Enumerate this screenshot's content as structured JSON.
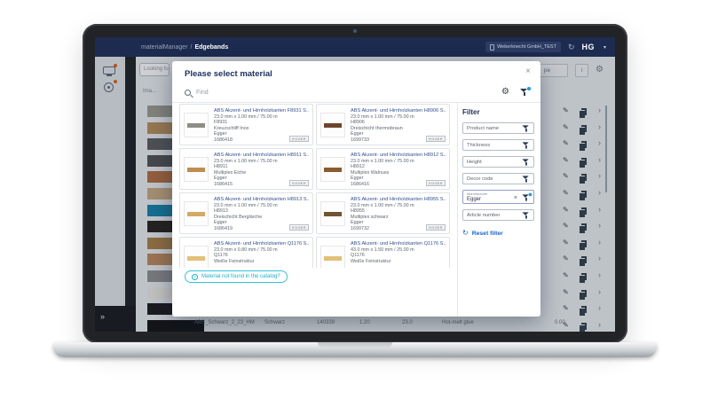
{
  "nav": {
    "app": "materialManager",
    "separator": "/",
    "section": "Edgebands",
    "org_badge": "Weberknecht GmbH_TEST",
    "logo": "HG",
    "logo_caret": "▾",
    "sync_glyph": "↻"
  },
  "background": {
    "search_value": "Looking fo",
    "image_column_header": "Ima...",
    "partial_button": "pe",
    "info_button": "i",
    "gear_glyph": "⚙",
    "expand_toggle": "»",
    "edit_glyph": "✎",
    "chevron_glyph": "›",
    "swatches": [
      {
        "color": "#99998b"
      },
      {
        "color": "#b68c55"
      },
      {
        "color": "#59595b"
      },
      {
        "color": "#4e4e50"
      },
      {
        "color": "#b06b3c"
      },
      {
        "color": "#c8a97e"
      },
      {
        "color": "#0f7fa6"
      },
      {
        "color": "#211c16"
      },
      {
        "color": "#a87c3f"
      },
      {
        "color": "#bd8756"
      },
      {
        "color": "#8d8d8d"
      },
      {
        "color": "#edeae4"
      },
      {
        "color": "#151515"
      },
      {
        "color": "#0b0b0b"
      }
    ],
    "last_row": {
      "name": "ABS_Schwarz_2_23_HM",
      "color": "Schwarz",
      "code": "140339",
      "thickness": "1.20",
      "height": "23.0",
      "glue": "Hot-melt glue",
      "price": "0.00"
    }
  },
  "modal": {
    "title": "Please select material",
    "close_glyph": "×",
    "search_placeholder": "Find",
    "gear_glyph": "⚙",
    "help_glyph": "?",
    "not_found_button": "Material not found in the catalog?",
    "materials": [
      {
        "title": "ABS Akzent- und Hirnholzkanten F8931 S..",
        "dimensions": "23.0 mm x 1.00 mm / 75.00 m",
        "code": "F8931",
        "decor": "Kreuzschliff Inox",
        "manufacturer": "Egger",
        "article": "1686418",
        "strip": "#8d8d85",
        "brand": "EGGER"
      },
      {
        "title": "ABS Akzent- und Hirnholzkanten H8906 S..",
        "dimensions": "23.0 mm x 1.00 mm / 75.00 m",
        "code": "H8906",
        "decor": "Dreischicht thermobraun",
        "manufacturer": "Egger",
        "article": "1699733",
        "strip": "#6e452a",
        "brand": "EGGER"
      },
      {
        "title": "ABS Akzent- und Hirnholzkanten H8911 S..",
        "dimensions": "23.0 mm x 1.00 mm / 75.00 m",
        "code": "H8911",
        "decor": "Multiplex Eiche",
        "manufacturer": "Egger",
        "article": "1686415",
        "strip": "#c08d4e",
        "brand": "EGGER"
      },
      {
        "title": "ABS Akzent- und Hirnholzkanten H8912 S..",
        "dimensions": "23.0 mm x 1.00 mm / 75.00 m",
        "code": "H8912",
        "decor": "Multiplex Walnuss",
        "manufacturer": "Egger",
        "article": "1686416",
        "strip": "#8a5a30",
        "brand": "EGGER"
      },
      {
        "title": "ABS Akzent- und Hirnholzkanten H8913 S..",
        "dimensions": "23.0 mm x 1.00 mm / 75.00 m",
        "code": "H8913",
        "decor": "Dreischicht Berglärche",
        "manufacturer": "Egger",
        "article": "1686419",
        "strip": "#d4a964",
        "brand": "EGGER"
      },
      {
        "title": "ABS Akzent- und Hirnholzkanten H8955 S..",
        "dimensions": "23.0 mm x 1.00 mm / 75.00 m",
        "code": "H8955",
        "decor": "Multiplex schwarz",
        "manufacturer": "Egger",
        "article": "1699732",
        "strip": "#6f5433",
        "brand": "EGGER"
      },
      {
        "title": "ABS Akzent- und Hirnholzkanten Q1176 S..",
        "dimensions": "23.0 mm x 0.80 mm / 75.00 m",
        "code": "Q1176",
        "decor": "Weiße Feinstruktur",
        "manufacturer": "",
        "article": "",
        "strip": "#e2c077",
        "brand": ""
      },
      {
        "title": "ABS Akzent- und Hirnholzkanten Q1176 S..",
        "dimensions": "43.0 mm x 1.50 mm / 25.00 m",
        "code": "Q1176",
        "decor": "Weiße Feinstruktur",
        "manufacturer": "",
        "article": "",
        "strip": "#e2c077",
        "brand": ""
      }
    ],
    "filter": {
      "title": "Filter",
      "fields": [
        {
          "label": "Product name"
        },
        {
          "label": "Thickness"
        },
        {
          "label": "Height"
        },
        {
          "label": "Decor code"
        }
      ],
      "manufacturer": {
        "label": "Manufacturer",
        "value": "Egger",
        "clear_glyph": "×"
      },
      "article_field": {
        "label": "Article number"
      },
      "reset_glyph": "↻",
      "reset_label": "Reset filter"
    }
  }
}
